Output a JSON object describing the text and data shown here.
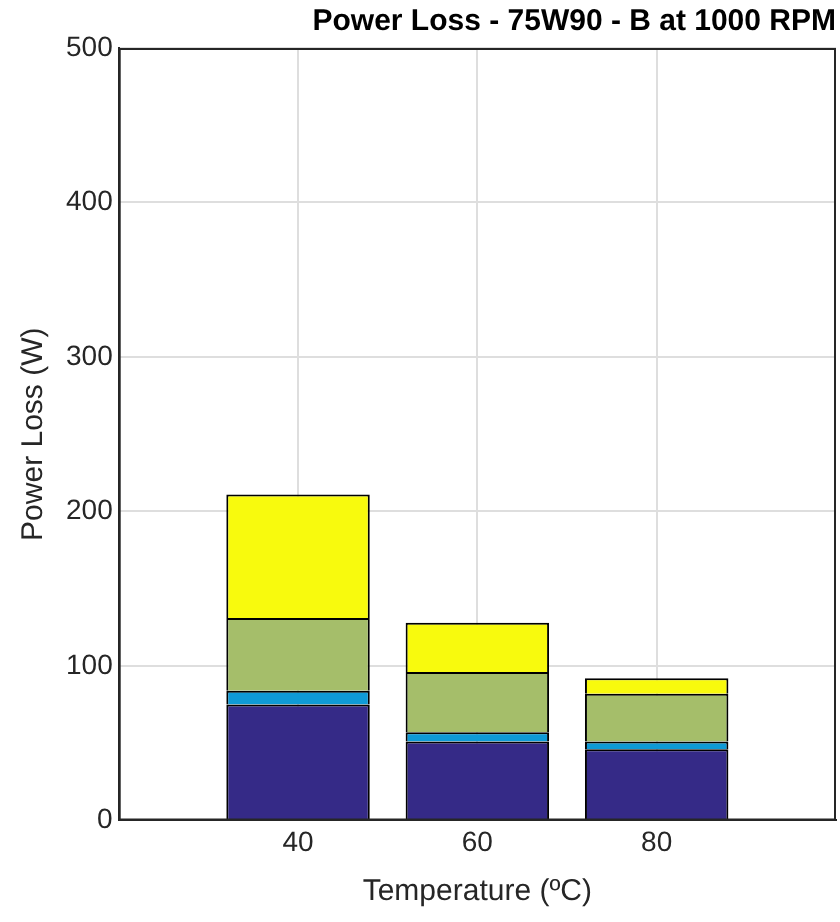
{
  "chart_data": {
    "type": "bar",
    "title": "Power Loss - 75W90 - B at 1000 RPM",
    "xlabel": "Temperature (ºC)",
    "ylabel": "Power Loss (W)",
    "x": [
      40,
      60,
      80
    ],
    "xlim": [
      20,
      100
    ],
    "xticks": [
      40,
      60,
      80
    ],
    "ylim": [
      0,
      500
    ],
    "yticks": [
      0,
      100,
      200,
      300,
      400,
      500
    ],
    "stacked": true,
    "grid": true,
    "legend": false,
    "series": [
      {
        "color": "#352a87",
        "values": [
          75,
          51,
          46
        ]
      },
      {
        "color": "#0f9ad6",
        "values": [
          9,
          6,
          5
        ]
      },
      {
        "color": "#a5be6a",
        "values": [
          47,
          39,
          31
        ]
      },
      {
        "color": "#f8fa0d",
        "values": [
          80,
          32,
          10
        ]
      }
    ]
  }
}
